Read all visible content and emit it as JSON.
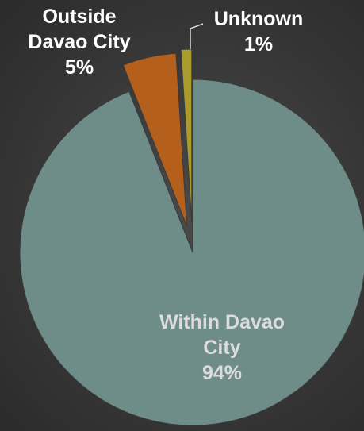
{
  "chart_data": {
    "type": "pie",
    "categories": [
      "Within Davao City",
      "Outside Davao City",
      "Unknown"
    ],
    "values": [
      94,
      5,
      1
    ],
    "value_labels": [
      "94%",
      "5%",
      "1%"
    ],
    "colors": [
      "#6e8d88",
      "#b4601c",
      "#a99b2c"
    ]
  }
}
